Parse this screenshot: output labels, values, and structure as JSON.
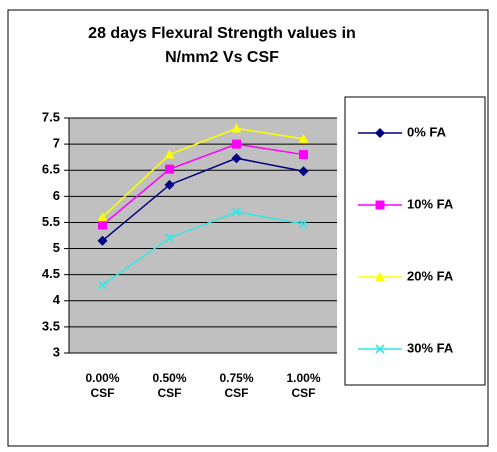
{
  "chart_data": {
    "type": "line",
    "title": [
      "28 days Flexural Strength values in",
      "N/mm2 Vs CSF"
    ],
    "categories": [
      "0.00% CSF",
      "0.50% CSF",
      "0.75% CSF",
      "1.00% CSF"
    ],
    "series": [
      {
        "name": "0% FA",
        "color": "#000080",
        "marker": "diamond",
        "values": [
          5.15,
          6.22,
          6.73,
          6.48
        ]
      },
      {
        "name": "10% FA",
        "color": "#ff00ff",
        "marker": "square",
        "values": [
          5.45,
          6.52,
          7.0,
          6.8
        ]
      },
      {
        "name": "20% FA",
        "color": "#ffff00",
        "marker": "triangle",
        "values": [
          5.6,
          6.8,
          7.3,
          7.1
        ]
      },
      {
        "name": "30% FA",
        "color": "#33e6e6",
        "marker": "x",
        "values": [
          4.3,
          5.2,
          5.7,
          5.47
        ]
      }
    ],
    "ylim": [
      3,
      7.5
    ],
    "yticks": [
      3,
      3.5,
      4,
      4.5,
      5,
      5.5,
      6,
      6.5,
      7,
      7.5
    ],
    "grid": true,
    "legend": "right"
  }
}
